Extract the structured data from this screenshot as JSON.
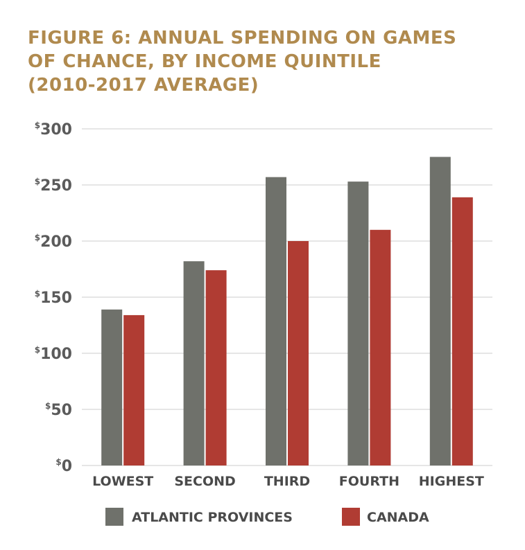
{
  "title_lines": [
    "FIGURE 6: ANNUAL SPENDING ON GAMES",
    "OF CHANCE, BY INCOME QUINTILE",
    "(2010-2017 AVERAGE)"
  ],
  "colors": {
    "title": "#b08a4e",
    "atlantic": "#6f716b",
    "canada": "#b03c33",
    "grid": "#dedede",
    "text": "#4a4a4a"
  },
  "chart_data": {
    "type": "bar",
    "title": "FIGURE 6: ANNUAL SPENDING ON GAMES OF CHANCE, BY INCOME QUINTILE (2010-2017 AVERAGE)",
    "categories": [
      "LOWEST",
      "SECOND",
      "THIRD",
      "FOURTH",
      "HIGHEST"
    ],
    "series": [
      {
        "name": "ATLANTIC PROVINCES",
        "values": [
          139,
          182,
          257,
          253,
          275
        ]
      },
      {
        "name": "CANADA",
        "values": [
          134,
          174,
          200,
          210,
          239
        ]
      }
    ],
    "ylim": [
      0,
      300
    ],
    "yticks": [
      0,
      50,
      100,
      150,
      200,
      250,
      300
    ],
    "ytick_prefix": "$",
    "grid": true,
    "legend": "bottom"
  }
}
